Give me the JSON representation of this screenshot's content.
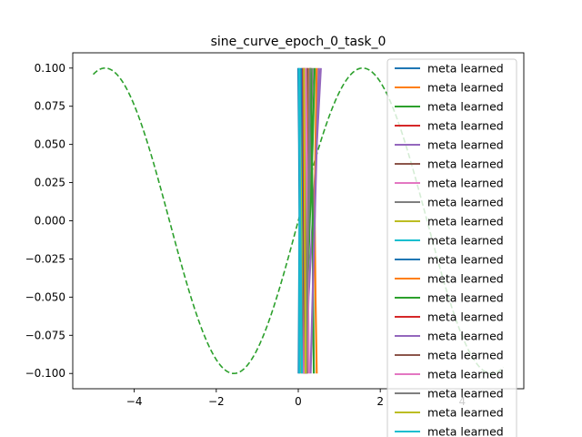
{
  "chart_data": {
    "type": "line",
    "title": "sine_curve_epoch_0_task_0",
    "xlabel": "",
    "ylabel": "",
    "xlim": [
      -5.5,
      5.5
    ],
    "ylim": [
      -0.11,
      0.11
    ],
    "x_ticks": [
      -4,
      -2,
      0,
      2,
      4
    ],
    "x_tick_labels": [
      "−4",
      "−2",
      "0",
      "2",
      "4"
    ],
    "y_ticks": [
      0.1,
      0.075,
      0.05,
      0.025,
      0.0,
      -0.025,
      -0.05,
      -0.075,
      -0.1
    ],
    "y_tick_labels": [
      "0.100",
      "0.075",
      "0.050",
      "0.025",
      "0.000",
      "−0.025",
      "−0.050",
      "−0.075",
      "−0.100"
    ],
    "grid": false,
    "legend_position": "top-right",
    "reference_curve": {
      "style": "dashed",
      "color": "#2ca02c",
      "x_range": [
        -5,
        5
      ],
      "amplitude": 0.1
    },
    "series": [
      {
        "name": "meta learned",
        "color": "#1f77b4",
        "x": [
          0.0,
          0.02,
          0.03,
          0.02,
          0.01
        ],
        "y": [
          0.1,
          0.05,
          0.0,
          -0.05,
          -0.1
        ]
      },
      {
        "name": "meta learned",
        "color": "#ff7f0e",
        "x": [
          0.25,
          0.22,
          0.2,
          0.18,
          0.15
        ],
        "y": [
          0.1,
          0.05,
          0.0,
          -0.05,
          -0.1
        ]
      },
      {
        "name": "meta learned",
        "color": "#2ca02c",
        "x": [
          0.4,
          0.35,
          0.28,
          0.22,
          0.15
        ],
        "y": [
          0.1,
          0.05,
          0.0,
          -0.05,
          -0.1
        ]
      },
      {
        "name": "meta learned",
        "color": "#d62728",
        "x": [
          0.3,
          0.25,
          0.2,
          0.18,
          0.16
        ],
        "y": [
          0.1,
          0.05,
          0.0,
          -0.05,
          -0.1
        ]
      },
      {
        "name": "meta learned",
        "color": "#9467bd",
        "x": [
          0.55,
          0.45,
          0.35,
          0.25,
          0.2
        ],
        "y": [
          0.1,
          0.05,
          0.0,
          -0.05,
          -0.1
        ]
      },
      {
        "name": "meta learned",
        "color": "#8c564b",
        "x": [
          0.15,
          0.14,
          0.13,
          0.12,
          0.12
        ],
        "y": [
          0.1,
          0.05,
          0.0,
          -0.05,
          -0.1
        ]
      },
      {
        "name": "meta learned",
        "color": "#e377c2",
        "x": [
          0.2,
          0.18,
          0.16,
          0.15,
          0.14
        ],
        "y": [
          0.1,
          0.05,
          0.0,
          -0.05,
          -0.1
        ]
      },
      {
        "name": "meta learned",
        "color": "#7f7f7f",
        "x": [
          0.35,
          0.3,
          0.25,
          0.22,
          0.2
        ],
        "y": [
          0.1,
          0.05,
          0.0,
          -0.05,
          -0.1
        ]
      },
      {
        "name": "meta learned",
        "color": "#bcbd22",
        "x": [
          0.1,
          0.09,
          0.08,
          0.07,
          0.06
        ],
        "y": [
          0.1,
          0.05,
          0.0,
          -0.05,
          -0.1
        ]
      },
      {
        "name": "meta learned",
        "color": "#17becf",
        "x": [
          0.05,
          0.04,
          0.035,
          0.03,
          0.03
        ],
        "y": [
          0.1,
          0.05,
          0.0,
          -0.05,
          -0.1
        ]
      },
      {
        "name": "meta learned",
        "color": "#1f77b4",
        "x": [
          0.08,
          0.1,
          0.12,
          0.15,
          0.18
        ],
        "y": [
          0.1,
          0.05,
          0.0,
          -0.05,
          -0.1
        ]
      },
      {
        "name": "meta learned",
        "color": "#ff7f0e",
        "x": [
          0.45,
          0.42,
          0.4,
          0.42,
          0.45
        ],
        "y": [
          0.1,
          0.05,
          0.0,
          -0.05,
          -0.1
        ]
      },
      {
        "name": "meta learned",
        "color": "#2ca02c",
        "x": [
          0.3,
          0.33,
          0.35,
          0.36,
          0.38
        ],
        "y": [
          0.1,
          0.05,
          0.0,
          -0.05,
          -0.1
        ]
      },
      {
        "name": "meta learned",
        "color": "#d62728",
        "x": [
          0.12,
          0.13,
          0.14,
          0.16,
          0.18
        ],
        "y": [
          0.1,
          0.05,
          0.0,
          -0.05,
          -0.1
        ]
      },
      {
        "name": "meta learned",
        "color": "#9467bd",
        "x": [
          0.5,
          0.45,
          0.4,
          0.35,
          0.3
        ],
        "y": [
          0.1,
          0.05,
          0.0,
          -0.05,
          -0.1
        ]
      },
      {
        "name": "meta learned",
        "color": "#8c564b",
        "x": [
          0.22,
          0.2,
          0.18,
          0.2,
          0.22
        ],
        "y": [
          0.1,
          0.05,
          0.0,
          -0.05,
          -0.1
        ]
      },
      {
        "name": "meta learned",
        "color": "#e377c2",
        "x": [
          0.18,
          0.2,
          0.22,
          0.24,
          0.26
        ],
        "y": [
          0.1,
          0.05,
          0.0,
          -0.05,
          -0.1
        ]
      },
      {
        "name": "meta learned",
        "color": "#7f7f7f",
        "x": [
          0.28,
          0.26,
          0.24,
          0.22,
          0.2
        ],
        "y": [
          0.1,
          0.05,
          0.0,
          -0.05,
          -0.1
        ]
      },
      {
        "name": "meta learned",
        "color": "#bcbd22",
        "x": [
          0.14,
          0.15,
          0.16,
          0.17,
          0.18
        ],
        "y": [
          0.1,
          0.05,
          0.0,
          -0.05,
          -0.1
        ]
      },
      {
        "name": "meta learned",
        "color": "#17becf",
        "x": [
          0.02,
          0.03,
          0.05,
          0.07,
          0.09
        ],
        "y": [
          0.1,
          0.05,
          0.0,
          -0.05,
          -0.1
        ]
      }
    ]
  }
}
